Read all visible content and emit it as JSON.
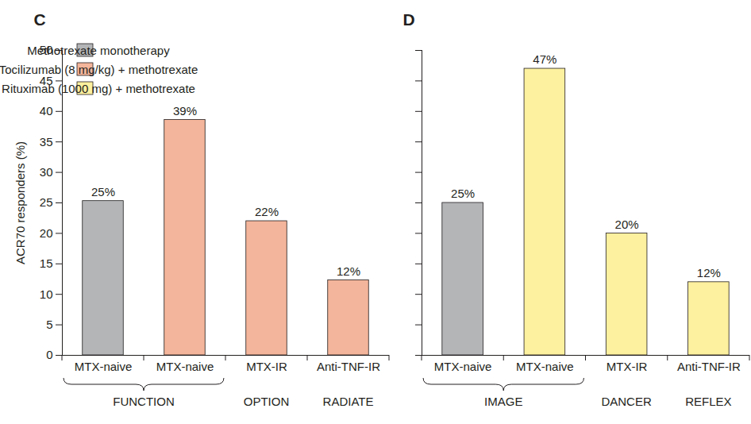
{
  "chart_data": [
    {
      "type": "bar",
      "title": "C",
      "ylabel": "ACR70 responders (%)",
      "categories": [
        "MTX-naive",
        "MTX-naive",
        "MTX-IR",
        "Anti-TNF-IR"
      ],
      "groups": [
        "FUNCTION",
        "FUNCTION",
        "OPTION",
        "RADIATE"
      ],
      "series": [
        {
          "name": "Methotrexate monotherapy",
          "color": "#b3b5b7",
          "values": [
            25.3,
            null,
            null,
            null
          ],
          "value_labels": [
            "25%",
            null,
            null,
            null
          ]
        },
        {
          "name": "Tocilizumab (8 mg/kg) + methotrexate",
          "color": "#f3b59b",
          "values": [
            null,
            38.6,
            22,
            12.3
          ],
          "value_labels": [
            null,
            "39%",
            "22%",
            "12%"
          ]
        },
        {
          "name": "Rituximab (1000 mg) + methotrexate",
          "color": "#fdf09e",
          "values": [
            null,
            null,
            null,
            null
          ],
          "value_labels": [
            null,
            null,
            null,
            null
          ]
        }
      ],
      "ylim": [
        0,
        50
      ],
      "yticks": [
        0,
        5,
        10,
        15,
        20,
        25,
        30,
        35,
        40,
        45,
        50
      ],
      "data_labels": true,
      "legend": "top-left"
    },
    {
      "type": "bar",
      "title": "D",
      "categories": [
        "MTX-naive",
        "MTX-naive",
        "MTX-IR",
        "Anti-TNF-IR"
      ],
      "groups": [
        "IMAGE",
        "IMAGE",
        "DANCER",
        "REFLEX"
      ],
      "series": [
        {
          "name": "Methotrexate monotherapy",
          "color": "#b3b5b7",
          "values": [
            25,
            null,
            null,
            null
          ],
          "value_labels": [
            "25%",
            null,
            null,
            null
          ]
        },
        {
          "name": "Rituximab (1000 mg) + methotrexate",
          "color": "#fdf09e",
          "values": [
            null,
            47,
            20,
            12
          ],
          "value_labels": [
            null,
            "47%",
            "20%",
            "12%"
          ]
        }
      ],
      "ylim": [
        0,
        50
      ],
      "yticks": [
        0,
        5,
        10,
        15,
        20,
        25,
        30,
        35,
        40,
        45,
        50
      ],
      "data_labels": true,
      "tick_labels": "x"
    }
  ]
}
